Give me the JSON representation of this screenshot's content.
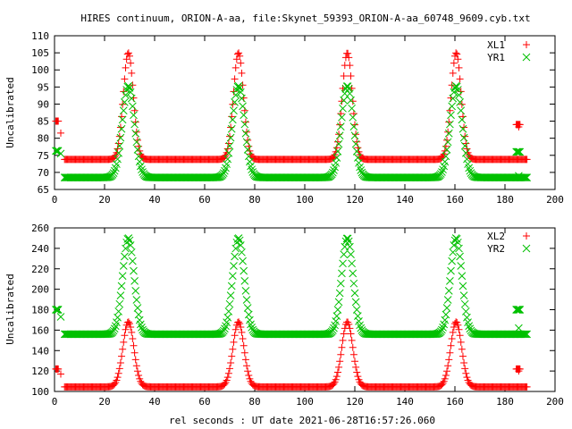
{
  "chart_data": [
    {
      "type": "scatter",
      "title": "HIRES continuum, ORION-A-aa, file:Skynet_59393_ORION-A-aa_60748_9609.cyb.txt",
      "xlabel": "",
      "ylabel": "Uncalibrated",
      "xlim": [
        0,
        200
      ],
      "ylim": [
        65,
        110
      ],
      "x_ticks": [
        "0",
        "20",
        "40",
        "60",
        "80",
        "100",
        "120",
        "140",
        "160",
        "180",
        "200"
      ],
      "y_ticks": [
        "65",
        "70",
        "75",
        "80",
        "85",
        "90",
        "95",
        "100",
        "105",
        "110"
      ],
      "legend_position": "top-right",
      "series": [
        {
          "name": "XL1",
          "marker": "plus",
          "color": "#ff0000",
          "baseline": 73.8,
          "peak": 105.0,
          "peak_x": [
            29.5,
            73.5,
            117,
            160.5
          ],
          "peak_sigma": 2.0,
          "scan_x_range": [
            4,
            189
          ],
          "start_cluster": {
            "x": [
              0.5,
              1.5
            ],
            "y": 85,
            "extra_points": [
              [
                2.5,
                81.5
              ]
            ]
          },
          "end_cluster": {
            "x": [
              184.5,
              186
            ],
            "y": 84,
            "extra_points": [
              [
                185.5,
                83.3
              ]
            ]
          }
        },
        {
          "name": "YR1",
          "marker": "cross",
          "color": "#00c000",
          "baseline": 68.5,
          "peak": 95.3,
          "peak_x": [
            29.5,
            73.5,
            117,
            160.5
          ],
          "peak_sigma": 2.4,
          "scan_x_range": [
            4,
            189
          ],
          "start_cluster": {
            "x": [
              0.5,
              1.5
            ],
            "y": 76.3,
            "extra_points": [
              [
                2.5,
                75.5
              ]
            ]
          },
          "end_cluster": {
            "x": [
              184.5,
              186
            ],
            "y": 76,
            "extra_points": [
              [
                185.5,
                69
              ]
            ]
          }
        }
      ]
    },
    {
      "type": "scatter",
      "title": "",
      "xlabel": "rel seconds : UT date 2021-06-28T16:57:26.060",
      "ylabel": "Uncalibrated",
      "xlim": [
        0,
        200
      ],
      "ylim": [
        100,
        260
      ],
      "x_ticks": [
        "0",
        "20",
        "40",
        "60",
        "80",
        "100",
        "120",
        "140",
        "160",
        "180",
        "200"
      ],
      "y_ticks": [
        "100",
        "120",
        "140",
        "160",
        "180",
        "200",
        "220",
        "240",
        "260"
      ],
      "legend_position": "top-right",
      "series": [
        {
          "name": "XL2",
          "marker": "plus",
          "color": "#ff0000",
          "baseline": 104.5,
          "peak": 168,
          "peak_x": [
            29.5,
            73.5,
            117,
            160.5
          ],
          "peak_sigma": 2.2,
          "scan_x_range": [
            4,
            189
          ],
          "start_cluster": {
            "x": [
              0.5,
              1.5
            ],
            "y": 122,
            "extra_points": [
              [
                2.5,
                117
              ]
            ]
          },
          "end_cluster": {
            "x": [
              184.5,
              186
            ],
            "y": 122,
            "extra_points": [
              [
                185.5,
                120
              ]
            ]
          }
        },
        {
          "name": "YR2",
          "marker": "cross",
          "color": "#00c000",
          "baseline": 156,
          "peak": 250,
          "peak_x": [
            29.5,
            73.5,
            117,
            160.5
          ],
          "peak_sigma": 2.3,
          "scan_x_range": [
            4,
            189
          ],
          "start_cluster": {
            "x": [
              0.5,
              1.5
            ],
            "y": 180,
            "extra_points": [
              [
                2.5,
                173
              ]
            ]
          },
          "end_cluster": {
            "x": [
              184.5,
              186
            ],
            "y": 180,
            "extra_points": [
              [
                185.5,
                162
              ]
            ]
          }
        }
      ]
    }
  ]
}
